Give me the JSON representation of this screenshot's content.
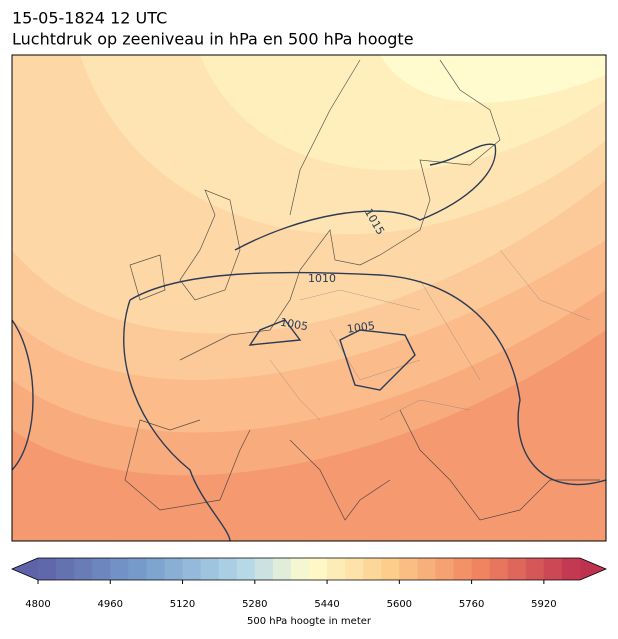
{
  "header": {
    "title": "15-05-1824 12 UTC",
    "subtitle": "Luchtdruk op zeeniveau in hPa en 500 hPa hoogte"
  },
  "isobar_labels": [
    1015,
    1010,
    1005,
    1005
  ],
  "colorbar": {
    "range": [
      4800,
      6000
    ],
    "step": 40,
    "ticks": [
      4800,
      4960,
      5120,
      5280,
      5440,
      5600,
      5760,
      5920
    ],
    "label": "500 hPa hoogte in meter"
  }
}
